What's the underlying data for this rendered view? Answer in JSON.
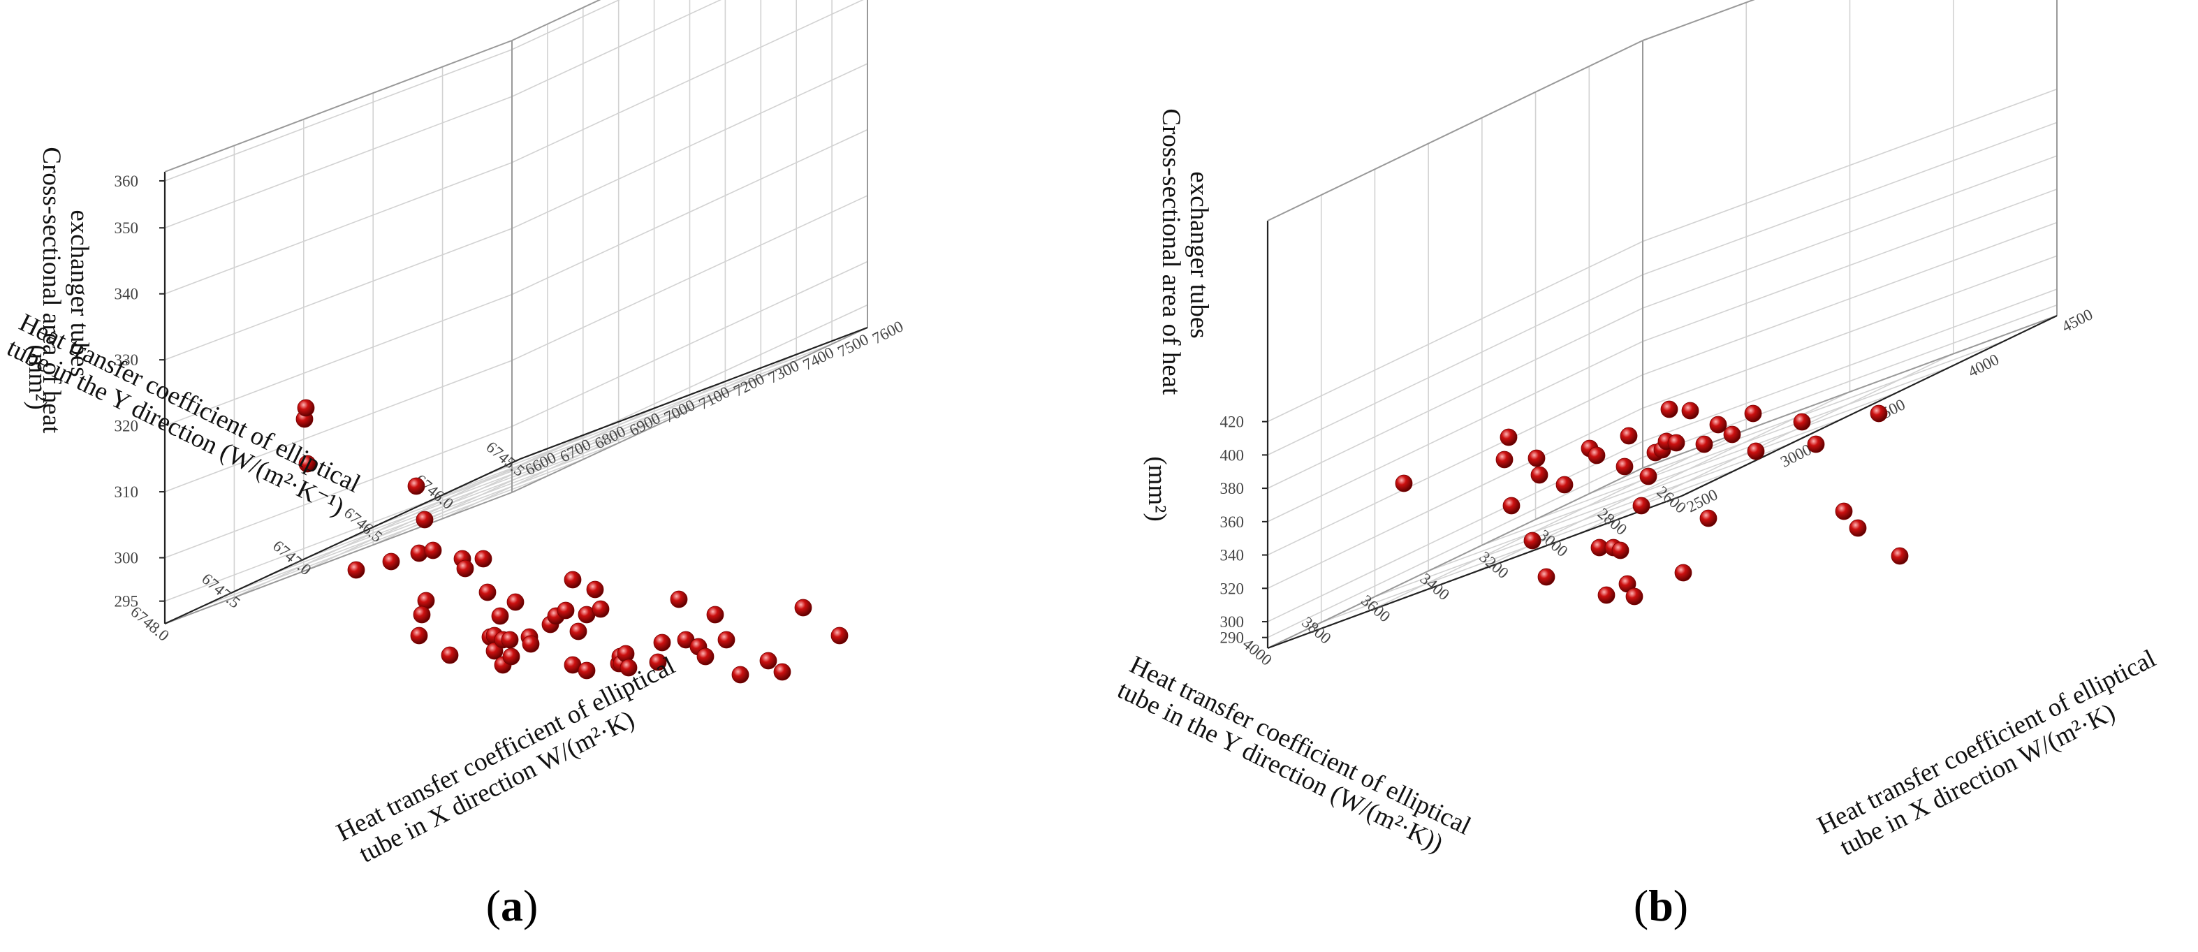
{
  "figure": {
    "marker_color": "#cc1010",
    "marker_highlight": "#ffb5b5",
    "marker_shadow": "#5a0000",
    "grid_color": "#d2d2d2",
    "axis_color": "#222222",
    "text_color": "#111111"
  },
  "chart_data": [
    {
      "type": "scatter3d",
      "panel": "a",
      "label_open": "(",
      "label_letter": "a",
      "label_close": ")",
      "z_title_lines": [
        "Cross-sectional area of heat",
        "exchanger tubes",
        "(mm²)"
      ],
      "y_title_lines": [
        "Heat transfer coefficient of elliptical",
        "tube in the Y direction (W/(m²·K⁻¹)"
      ],
      "x_title_lines": [
        "Heat transfer coefficient of elliptical",
        "tube in X direction  W/(m²·K)"
      ],
      "z_ticks": [
        {
          "value": 295,
          "label": "295"
        },
        {
          "value": 300,
          "label": "300"
        },
        {
          "value": 310,
          "label": "310"
        },
        {
          "value": 320,
          "label": "320"
        },
        {
          "value": 330,
          "label": "330"
        },
        {
          "value": 340,
          "label": "340"
        },
        {
          "value": 350,
          "label": "350"
        },
        {
          "value": 360,
          "label": "360"
        }
      ],
      "y_ticks": [
        {
          "value": 6748.0,
          "label": "6748.0"
        },
        {
          "value": 6747.5,
          "label": "6747.5"
        },
        {
          "value": 6747.0,
          "label": "6747.0"
        },
        {
          "value": 6746.5,
          "label": "6746.5"
        },
        {
          "value": 6746.0,
          "label": "6746.0"
        },
        {
          "value": 6745.5,
          "label": "6745.5"
        }
      ],
      "x_ticks": [
        {
          "value": 6600,
          "label": "6600"
        },
        {
          "value": 6700,
          "label": "6700"
        },
        {
          "value": 6800,
          "label": "6800"
        },
        {
          "value": 6900,
          "label": "6900"
        },
        {
          "value": 7000,
          "label": "7000"
        },
        {
          "value": 7100,
          "label": "7100"
        },
        {
          "value": 7200,
          "label": "7200"
        },
        {
          "value": 7300,
          "label": "7300"
        },
        {
          "value": 7400,
          "label": "7400"
        },
        {
          "value": 7500,
          "label": "7500"
        },
        {
          "value": 7600,
          "label": "7600"
        }
      ],
      "points": [
        [
          298,
          348
        ],
        [
          220,
          332
        ],
        [
          218,
          300
        ],
        [
          219,
          292
        ],
        [
          255,
          408
        ],
        [
          280,
          402
        ],
        [
          300,
          396
        ],
        [
          304,
          372
        ],
        [
          305,
          430
        ],
        [
          302,
          440
        ],
        [
          300,
          455
        ],
        [
          310,
          394
        ],
        [
          322,
          469
        ],
        [
          331,
          400
        ],
        [
          333,
          407
        ],
        [
          346,
          400
        ],
        [
          349,
          424
        ],
        [
          351,
          456
        ],
        [
          354,
          455
        ],
        [
          354,
          466
        ],
        [
          358,
          441
        ],
        [
          360,
          458
        ],
        [
          360,
          476
        ],
        [
          365,
          458
        ],
        [
          366,
          470
        ],
        [
          369,
          431
        ],
        [
          379,
          456
        ],
        [
          380,
          461
        ],
        [
          394,
          447
        ],
        [
          398,
          441
        ],
        [
          405,
          437
        ],
        [
          410,
          415
        ],
        [
          410,
          476
        ],
        [
          414,
          452
        ],
        [
          420,
          440
        ],
        [
          420,
          480
        ],
        [
          426,
          422
        ],
        [
          430,
          436
        ],
        [
          443,
          475
        ],
        [
          444,
          470
        ],
        [
          445,
          475
        ],
        [
          448,
          468
        ],
        [
          450,
          478
        ],
        [
          471,
          474
        ],
        [
          474,
          460
        ],
        [
          486,
          429
        ],
        [
          491,
          458
        ],
        [
          500,
          463
        ],
        [
          505,
          470
        ],
        [
          512,
          440
        ],
        [
          520,
          458
        ],
        [
          530,
          483
        ],
        [
          550,
          473
        ],
        [
          560,
          481
        ],
        [
          575,
          435
        ],
        [
          601,
          455
        ]
      ]
    },
    {
      "type": "scatter3d",
      "panel": "b",
      "label_open": "(",
      "label_letter": "b",
      "label_close": ")",
      "z_title_lines": [
        "Cross-sectional area of heat",
        "exchanger tubes",
        "(mm²)"
      ],
      "y_title_lines": [
        "Heat transfer coefficient of elliptical",
        "tube in the Y direction (W/(m²·K))"
      ],
      "x_title_lines": [
        "Heat transfer coefficient of elliptical",
        "tube in X direction W/(m²·K)"
      ],
      "z_ticks": [
        {
          "value": 290,
          "label": "290"
        },
        {
          "value": 300,
          "label": "300"
        },
        {
          "value": 320,
          "label": "320"
        },
        {
          "value": 340,
          "label": "340"
        },
        {
          "value": 360,
          "label": "360"
        },
        {
          "value": 380,
          "label": "380"
        },
        {
          "value": 400,
          "label": "400"
        },
        {
          "value": 420,
          "label": "420"
        }
      ],
      "y_ticks": [
        {
          "value": 4000,
          "label": "4000"
        },
        {
          "value": 3800,
          "label": "3800"
        },
        {
          "value": 3600,
          "label": "3600"
        },
        {
          "value": 3400,
          "label": "3400"
        },
        {
          "value": 3200,
          "label": "3200"
        },
        {
          "value": 3000,
          "label": "3000"
        },
        {
          "value": 2800,
          "label": "2800"
        },
        {
          "value": 2600,
          "label": "2600"
        }
      ],
      "x_ticks": [
        {
          "value": 2500,
          "label": "2500"
        },
        {
          "value": 3000,
          "label": "3000"
        },
        {
          "value": 3500,
          "label": "3500"
        },
        {
          "value": 4000,
          "label": "4000"
        },
        {
          "value": 4500,
          "label": "4500"
        }
      ],
      "points": [
        [
          1005,
          346
        ],
        [
          1077,
          329
        ],
        [
          1080,
          313
        ],
        [
          1082,
          362
        ],
        [
          1097,
          387
        ],
        [
          1100,
          328
        ],
        [
          1102,
          340
        ],
        [
          1107,
          413
        ],
        [
          1120,
          347
        ],
        [
          1138,
          321
        ],
        [
          1143,
          326
        ],
        [
          1145,
          392
        ],
        [
          1150,
          426
        ],
        [
          1155,
          392
        ],
        [
          1160,
          394
        ],
        [
          1163,
          334
        ],
        [
          1166,
          312
        ],
        [
          1175,
          362
        ],
        [
          1180,
          341
        ],
        [
          1185,
          324
        ],
        [
          1190,
          322
        ],
        [
          1193,
          316
        ],
        [
          1195,
          293
        ],
        [
          1200,
          317
        ],
        [
          1210,
          294
        ],
        [
          1220,
          318
        ],
        [
          1230,
          304
        ],
        [
          1240,
          311
        ],
        [
          1255,
          296
        ],
        [
          1257,
          323
        ],
        [
          1290,
          302
        ],
        [
          1300,
          318
        ],
        [
          1320,
          366
        ],
        [
          1330,
          378
        ],
        [
          1345,
          296
        ],
        [
          1360,
          398
        ],
        [
          1165,
          418
        ],
        [
          1170,
          427
        ],
        [
          1205,
          410
        ],
        [
          1223,
          371
        ]
      ]
    }
  ]
}
